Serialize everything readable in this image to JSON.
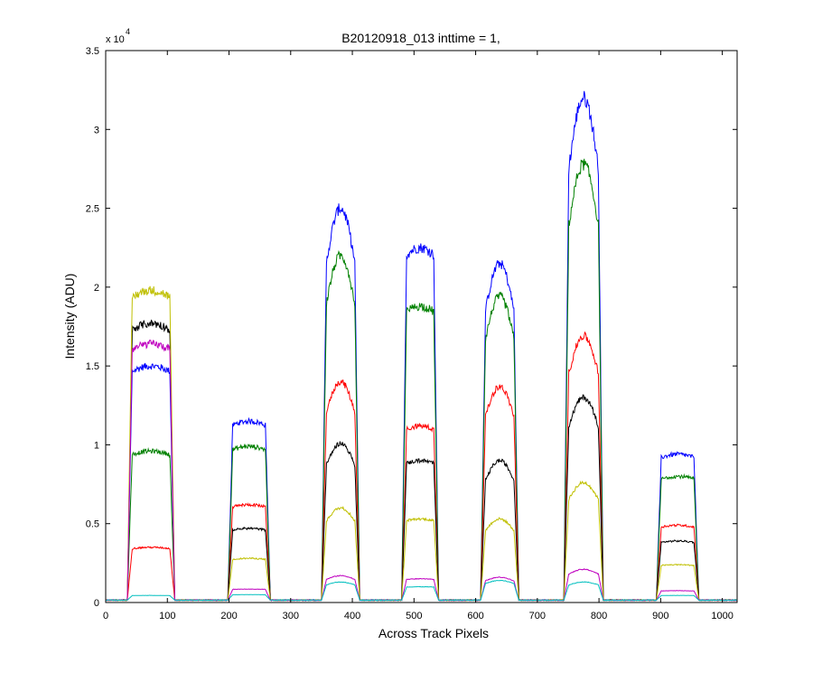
{
  "chart_data": {
    "type": "line",
    "title": "B20120918_013 inttime = 1,",
    "xlabel": "Across Track Pixels",
    "ylabel": "Intensity (ADU)",
    "exponent_label": "x 10",
    "exponent_power": "4",
    "xlim": [
      0,
      1024
    ],
    "ylim": [
      0,
      35000
    ],
    "xticks": [
      0,
      100,
      200,
      300,
      400,
      500,
      600,
      700,
      800,
      900,
      1000
    ],
    "yticks": [
      0,
      5000,
      10000,
      15000,
      20000,
      25000,
      30000,
      35000
    ],
    "ytick_labels": [
      "0",
      "0.5",
      "1",
      "1.5",
      "2",
      "2.5",
      "3",
      "3.5"
    ],
    "grid": false,
    "legend": "none",
    "baseline": 150,
    "segments": [
      {
        "start": 37,
        "end": 110,
        "shape": "flat"
      },
      {
        "start": 200,
        "end": 265,
        "shape": "flat"
      },
      {
        "start": 352,
        "end": 410,
        "shape": "peak"
      },
      {
        "start": 482,
        "end": 538,
        "shape": "flat"
      },
      {
        "start": 610,
        "end": 668,
        "shape": "peak"
      },
      {
        "start": 745,
        "end": 805,
        "shape": "peak"
      },
      {
        "start": 895,
        "end": 960,
        "shape": "flat"
      }
    ],
    "series": [
      {
        "color": "#0000ff",
        "levels": [
          15000,
          11500,
          25000,
          22500,
          21500,
          32000,
          9400
        ]
      },
      {
        "color": "#008000",
        "levels": [
          9600,
          9900,
          22000,
          18800,
          19400,
          27800,
          8000
        ]
      },
      {
        "color": "#ff0000",
        "levels": [
          3500,
          6200,
          14000,
          11200,
          13700,
          16900,
          4900
        ]
      },
      {
        "color": "#000000",
        "levels": [
          17700,
          4700,
          10100,
          9000,
          9000,
          13000,
          3900
        ]
      },
      {
        "color": "#bfbf00",
        "levels": [
          19800,
          2800,
          6000,
          5300,
          5300,
          7600,
          2400
        ]
      },
      {
        "color": "#bf00bf",
        "levels": [
          16400,
          850,
          1700,
          1500,
          1600,
          2100,
          750
        ]
      },
      {
        "color": "#00bfbf",
        "levels": [
          450,
          500,
          1300,
          1000,
          1400,
          1300,
          450
        ]
      }
    ]
  }
}
